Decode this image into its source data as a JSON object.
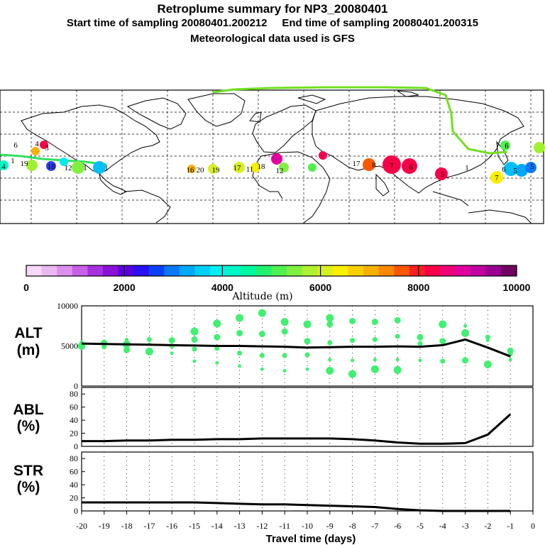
{
  "header": {
    "title": "Retroplume summary for NP3_20080401",
    "start_label": "Start time of sampling 20080401.200212",
    "end_label": "End time of sampling 20080401.200315",
    "met_label": "Meteorological data used is GFS"
  },
  "colorbar": {
    "ticks": [
      "0",
      "2000",
      "4000",
      "6000",
      "8000",
      "10000"
    ],
    "label": "Altitude (m)",
    "colors": [
      "#f6d8f6",
      "#eab8f0",
      "#dc90ec",
      "#c860e8",
      "#a830e0",
      "#8a10d8",
      "#5a00e0",
      "#2a10f0",
      "#0a40f8",
      "#0a78f8",
      "#00a8f8",
      "#00d0f8",
      "#00f0f0",
      "#00f8c8",
      "#00f8a0",
      "#20f070",
      "#50f050",
      "#80f040",
      "#b0f030",
      "#d8f020",
      "#f8f000",
      "#f8d000",
      "#f8b000",
      "#f88800",
      "#f85800",
      "#f82020",
      "#f80048",
      "#f00078",
      "#e000a0",
      "#c000a0",
      "#9a0090",
      "#700060"
    ]
  },
  "map": {
    "labels": [
      {
        "t": "4",
        "c": "#00f8c8"
      },
      {
        "t": "6",
        "c": "#80f040"
      },
      {
        "t": "1",
        "c": "#3040f0"
      },
      {
        "t": "19",
        "c": "#00e8f0"
      },
      {
        "t": "18",
        "c": "#80f040"
      },
      {
        "t": "12",
        "c": "#80f040"
      },
      {
        "t": "1",
        "c": "#00c0f8"
      },
      {
        "t": "1",
        "c": "#00a8f8"
      },
      {
        "t": "16",
        "c": "#f8b000"
      },
      {
        "t": "20",
        "c": "#d8f020"
      },
      {
        "t": "19",
        "c": "#d8f020"
      },
      {
        "t": "17",
        "c": "#d8f020"
      },
      {
        "t": "11",
        "c": "#f8f000"
      },
      {
        "t": "18",
        "c": "#a0f030"
      },
      {
        "t": "12",
        "c": "#f8b000"
      },
      {
        "t": "17",
        "c": "#80f040"
      },
      {
        "t": "8",
        "c": "#f80048"
      },
      {
        "t": "7",
        "c": "#f80048"
      },
      {
        "t": "6",
        "c": "#f80048"
      },
      {
        "t": "5",
        "c": "#f8f000"
      },
      {
        "t": "7",
        "c": "#00c0f8"
      },
      {
        "t": "6",
        "c": "#00a8f8"
      },
      {
        "t": "5",
        "c": "#00a8f8"
      },
      {
        "t": "6",
        "c": "#50f050"
      },
      {
        "t": "5",
        "c": "#a0f030"
      },
      {
        "t": "3",
        "c": "#f8b000"
      },
      {
        "t": "4",
        "c": "#f8f000"
      },
      {
        "t": "1",
        "c": "#00f8a0"
      }
    ]
  },
  "panels": {
    "alt": {
      "label_top": "ALT",
      "label_bottom": "(m)"
    },
    "abl": {
      "label_top": "ABL",
      "label_bottom": "(%)"
    },
    "str": {
      "label_top": "STR",
      "label_bottom": "(%)"
    }
  },
  "chart_data": [
    {
      "type": "line",
      "title": "ALT (m)",
      "x": [
        -20,
        -19,
        -18,
        -17,
        -16,
        -15,
        -14,
        -13,
        -12,
        -11,
        -10,
        -9,
        -8,
        -7,
        -6,
        -5,
        -4,
        -3,
        -2,
        -1
      ],
      "xlim": [
        -20,
        0
      ],
      "ylim": [
        0,
        10000
      ],
      "y_ticks": [
        "10000",
        "5000",
        "0"
      ],
      "series": [
        {
          "name": "mean altitude",
          "values": [
            5300,
            5250,
            5200,
            5150,
            5100,
            5050,
            5000,
            5000,
            4950,
            4900,
            4800,
            4850,
            4900,
            4900,
            4950,
            4900,
            5100,
            5800,
            4800,
            3700
          ]
        }
      ],
      "scatter": {
        "name": "cluster altitudes",
        "color": "#40f070",
        "points": [
          [
            -20,
            5500
          ],
          [
            -20,
            5000
          ],
          [
            -19,
            5400
          ],
          [
            -19,
            4900
          ],
          [
            -18,
            5800
          ],
          [
            -18,
            5200
          ],
          [
            -18,
            4500
          ],
          [
            -17,
            5800
          ],
          [
            -17,
            5200
          ],
          [
            -17,
            4300
          ],
          [
            -16,
            5700
          ],
          [
            -16,
            5000
          ],
          [
            -16,
            4100
          ],
          [
            -15,
            6800
          ],
          [
            -15,
            5800
          ],
          [
            -15,
            4600
          ],
          [
            -15,
            3100
          ],
          [
            -14,
            7800
          ],
          [
            -14,
            6100
          ],
          [
            -14,
            4700
          ],
          [
            -14,
            2900
          ],
          [
            -13,
            8500
          ],
          [
            -13,
            6600
          ],
          [
            -13,
            4100
          ],
          [
            -13,
            2500
          ],
          [
            -12,
            9100
          ],
          [
            -12,
            6500
          ],
          [
            -12,
            3800
          ],
          [
            -12,
            2100
          ],
          [
            -11,
            8000
          ],
          [
            -11,
            6800
          ],
          [
            -11,
            3800
          ],
          [
            -11,
            1900
          ],
          [
            -10,
            7700
          ],
          [
            -10,
            5600
          ],
          [
            -10,
            3900
          ],
          [
            -10,
            2100
          ],
          [
            -9,
            8500
          ],
          [
            -9,
            7700
          ],
          [
            -9,
            5400
          ],
          [
            -9,
            3300
          ],
          [
            -9,
            1900
          ],
          [
            -8,
            8100
          ],
          [
            -8,
            5700
          ],
          [
            -8,
            3200
          ],
          [
            -8,
            1500
          ],
          [
            -7,
            8000
          ],
          [
            -7,
            5800
          ],
          [
            -7,
            3300
          ],
          [
            -7,
            2100
          ],
          [
            -6,
            8200
          ],
          [
            -6,
            6200
          ],
          [
            -6,
            3300
          ],
          [
            -6,
            2000
          ],
          [
            -5,
            6100
          ],
          [
            -5,
            5300
          ],
          [
            -5,
            3200
          ],
          [
            -4,
            7700
          ],
          [
            -4,
            5600
          ],
          [
            -4,
            3100
          ],
          [
            -3,
            7500
          ],
          [
            -3,
            6600
          ],
          [
            -3,
            3200
          ],
          [
            -2,
            6100
          ],
          [
            -2,
            5700
          ],
          [
            -2,
            2700
          ],
          [
            -1,
            4400
          ],
          [
            -1,
            4000
          ],
          [
            -1,
            3300
          ]
        ]
      }
    },
    {
      "type": "line",
      "title": "ABL (%)",
      "x": [
        -20,
        -19,
        -18,
        -17,
        -16,
        -15,
        -14,
        -13,
        -12,
        -11,
        -10,
        -9,
        -8,
        -7,
        -6,
        -5,
        -4,
        -3,
        -2,
        -1
      ],
      "xlim": [
        -20,
        0
      ],
      "ylim": [
        0,
        90
      ],
      "y_ticks": [
        "80",
        "60",
        "40",
        "20",
        "0"
      ],
      "series": [
        {
          "name": "ABL",
          "values": [
            8,
            8,
            9,
            9,
            10,
            10,
            11,
            11,
            12,
            12,
            12,
            12,
            11,
            9,
            6,
            4,
            4,
            5,
            18,
            49
          ]
        }
      ]
    },
    {
      "type": "line",
      "title": "STR (%)",
      "x": [
        -20,
        -19,
        -18,
        -17,
        -16,
        -15,
        -14,
        -13,
        -12,
        -11,
        -10,
        -9,
        -8,
        -7,
        -6,
        -5,
        -4,
        -3,
        -2,
        -1
      ],
      "xlim": [
        -20,
        0
      ],
      "ylim": [
        0,
        90
      ],
      "y_ticks": [
        "80",
        "60",
        "40",
        "20",
        "0"
      ],
      "series": [
        {
          "name": "STR",
          "values": [
            13,
            13,
            13,
            13,
            13,
            13,
            12,
            11,
            10,
            10,
            9,
            8,
            7,
            6,
            3,
            1,
            0,
            0,
            0,
            0
          ]
        }
      ],
      "xlabel": "Travel time (days)",
      "x_ticks": [
        "-20",
        "-19",
        "-18",
        "-17",
        "-16",
        "-15",
        "-14",
        "-13",
        "-12",
        "-11",
        "-10",
        "-9",
        "-8",
        "-7",
        "-6",
        "-5",
        "-4",
        "-3",
        "-2",
        "-1",
        "0"
      ]
    }
  ]
}
